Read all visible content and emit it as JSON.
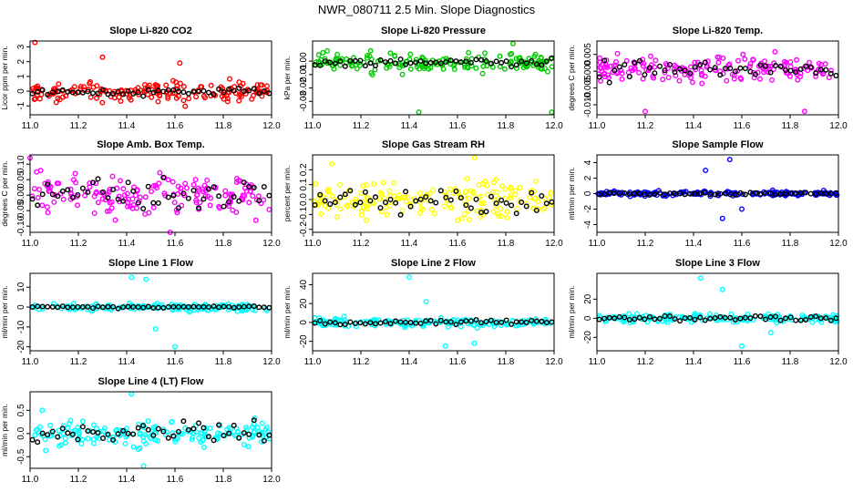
{
  "title": "NWR_080711  2.5 Min. Slope Diagnostics",
  "chart_data": [
    {
      "type": "scatter",
      "title": "Slope Li-820 CO2",
      "ylabel": "Licor ppm per min.",
      "color": "#ff0000",
      "xlim": [
        11.0,
        12.0
      ],
      "ylim": [
        -1.6,
        3.4
      ],
      "xticks": [
        "11.0",
        "11.2",
        "11.4",
        "11.6",
        "11.8",
        "12.0"
      ],
      "yticks": [
        -1,
        0,
        1,
        2,
        3
      ],
      "yticklabels": [
        "-1",
        "0",
        "1",
        "2",
        "3"
      ],
      "colored_spread": 0.45,
      "black_spread": 0.18,
      "mean": -0.05,
      "outliers": [
        11.02,
        3.3,
        11.3,
        2.3,
        11.62,
        1.9
      ]
    },
    {
      "type": "scatter",
      "title": "Slope Li-820 Pressure",
      "ylabel": "kPa per min.",
      "color": "#00cc00",
      "xlim": [
        11.0,
        12.0
      ],
      "ylim": [
        -0.04,
        0.015
      ],
      "xticks": [
        "11.0",
        "11.2",
        "11.4",
        "11.6",
        "11.8",
        "12.0"
      ],
      "yticks": [
        -0.03,
        -0.02,
        -0.01,
        0.0
      ],
      "yticklabels": [
        "-0.03",
        "-0.02",
        "-0.01",
        "0.00"
      ],
      "colored_spread": 0.0045,
      "black_spread": 0.002,
      "mean": -0.001,
      "outliers": [
        11.44,
        -0.038,
        11.99,
        -0.038,
        11.83,
        0.013
      ]
    },
    {
      "type": "scatter",
      "title": "Slope Li-820 Temp.",
      "ylabel": "degrees C per min.",
      "color": "#ff00ff",
      "xlim": [
        11.0,
        12.0
      ],
      "ylim": [
        -0.013,
        0.009
      ],
      "xticks": [
        "11.0",
        "11.2",
        "11.4",
        "11.6",
        "11.8",
        "12.0"
      ],
      "yticks": [
        -0.01,
        -0.005,
        0.0,
        0.005
      ],
      "yticklabels": [
        "-0.010",
        "-0.005",
        "0.000",
        "0.005"
      ],
      "colored_spread": 0.0028,
      "black_spread": 0.0018,
      "mean": 0.0005,
      "outliers": [
        11.2,
        -0.012,
        11.86,
        -0.012
      ]
    },
    {
      "type": "scatter",
      "title": "Slope Amb. Box Temp.",
      "ylabel": "degrees C per min.",
      "color": "#ff00ff",
      "xlim": [
        11.0,
        12.0
      ],
      "ylim": [
        -0.12,
        0.13
      ],
      "xticks": [
        "11.0",
        "11.2",
        "11.4",
        "11.6",
        "11.8",
        "12.0"
      ],
      "yticks": [
        -0.1,
        -0.05,
        0.0,
        0.05,
        0.1
      ],
      "yticklabels": [
        "-0.10",
        "-0.05",
        "0.00",
        "0.05",
        "0.10"
      ],
      "colored_spread": 0.045,
      "black_spread": 0.04,
      "mean": 0.0,
      "outliers": [
        11.0,
        0.12,
        11.58,
        -0.12
      ]
    },
    {
      "type": "scatter",
      "title": "Slope Gas Stream RH",
      "ylabel": "percent per min.",
      "color": "#ffff00",
      "xlim": [
        11.0,
        12.0
      ],
      "ylim": [
        -0.22,
        0.3
      ],
      "xticks": [
        "11.0",
        "11.2",
        "11.4",
        "11.6",
        "11.8",
        "12.0"
      ],
      "yticks": [
        -0.2,
        -0.1,
        0.0,
        0.1,
        0.2
      ],
      "yticklabels": [
        "-0.2",
        "-0.1",
        "0.0",
        "0.1",
        "0.2"
      ],
      "colored_spread": 0.08,
      "black_spread": 0.06,
      "mean": 0.0,
      "outliers": [
        11.08,
        0.24,
        11.67,
        0.28
      ]
    },
    {
      "type": "scatter",
      "title": "Slope Sample Flow",
      "ylabel": "ml/min per min.",
      "color": "#0000ff",
      "xlim": [
        11.0,
        12.0
      ],
      "ylim": [
        -5,
        5
      ],
      "xticks": [
        "11.0",
        "11.2",
        "11.4",
        "11.6",
        "11.8",
        "12.0"
      ],
      "yticks": [
        -4,
        -2,
        0,
        2,
        4
      ],
      "yticklabels": [
        "-4",
        "-2",
        "0",
        "2",
        "4"
      ],
      "colored_spread": 0.22,
      "black_spread": 0.12,
      "mean": 0.0,
      "outliers": [
        11.55,
        4.4,
        11.52,
        -3.2,
        11.45,
        3.0,
        11.6,
        -2.0
      ]
    },
    {
      "type": "scatter",
      "title": "Slope Line 1 Flow",
      "ylabel": "ml/min per min.",
      "color": "#00ffff",
      "xlim": [
        11.0,
        12.0
      ],
      "ylim": [
        -22,
        17
      ],
      "xticks": [
        "11.0",
        "11.2",
        "11.4",
        "11.6",
        "11.8",
        "12.0"
      ],
      "yticks": [
        -20,
        -10,
        0,
        10
      ],
      "yticklabels": [
        "-20",
        "-10",
        "0",
        "10"
      ],
      "colored_spread": 1.2,
      "black_spread": 0.4,
      "mean": 0.0,
      "outliers": [
        11.42,
        15,
        11.6,
        -20,
        11.52,
        -11,
        11.48,
        14
      ]
    },
    {
      "type": "scatter",
      "title": "Slope Line 2 Flow",
      "ylabel": "ml/min per min.",
      "color": "#00ffff",
      "xlim": [
        11.0,
        12.0
      ],
      "ylim": [
        -30,
        52
      ],
      "xticks": [
        "11.0",
        "11.2",
        "11.4",
        "11.6",
        "11.8",
        "12.0"
      ],
      "yticks": [
        -20,
        0,
        20,
        40
      ],
      "yticklabels": [
        "-20",
        "0",
        "20",
        "40"
      ],
      "colored_spread": 3,
      "black_spread": 2,
      "mean": 0.0,
      "outliers": [
        11.4,
        48,
        11.55,
        -25,
        11.47,
        22,
        11.67,
        -22
      ]
    },
    {
      "type": "scatter",
      "title": "Slope Line 3 Flow",
      "ylabel": "ml/min per min.",
      "color": "#00ffff",
      "xlim": [
        11.0,
        12.0
      ],
      "ylim": [
        -34,
        47
      ],
      "xticks": [
        "11.0",
        "11.2",
        "11.4",
        "11.6",
        "11.8",
        "12.0"
      ],
      "yticks": [
        -20,
        0,
        20
      ],
      "yticklabels": [
        "-20",
        "0",
        "20"
      ],
      "colored_spread": 3,
      "black_spread": 2,
      "mean": 0.0,
      "outliers": [
        11.43,
        42,
        11.6,
        -29,
        11.52,
        30,
        11.72,
        -15
      ]
    },
    {
      "type": "scatter",
      "title": "Slope Line 4 (LT) Flow",
      "ylabel": "ml/min per min.",
      "color": "#00ffff",
      "xlim": [
        11.0,
        12.0
      ],
      "ylim": [
        -0.75,
        0.9
      ],
      "xticks": [
        "11.0",
        "11.2",
        "11.4",
        "11.6",
        "11.8",
        "12.0"
      ],
      "yticks": [
        -0.5,
        0.0,
        0.5
      ],
      "yticklabels": [
        "-0.5",
        "0.0",
        "0.5"
      ],
      "colored_spread": 0.18,
      "black_spread": 0.15,
      "mean": 0.0,
      "outliers": [
        11.42,
        0.85,
        11.47,
        -0.7,
        11.05,
        0.5
      ]
    }
  ]
}
